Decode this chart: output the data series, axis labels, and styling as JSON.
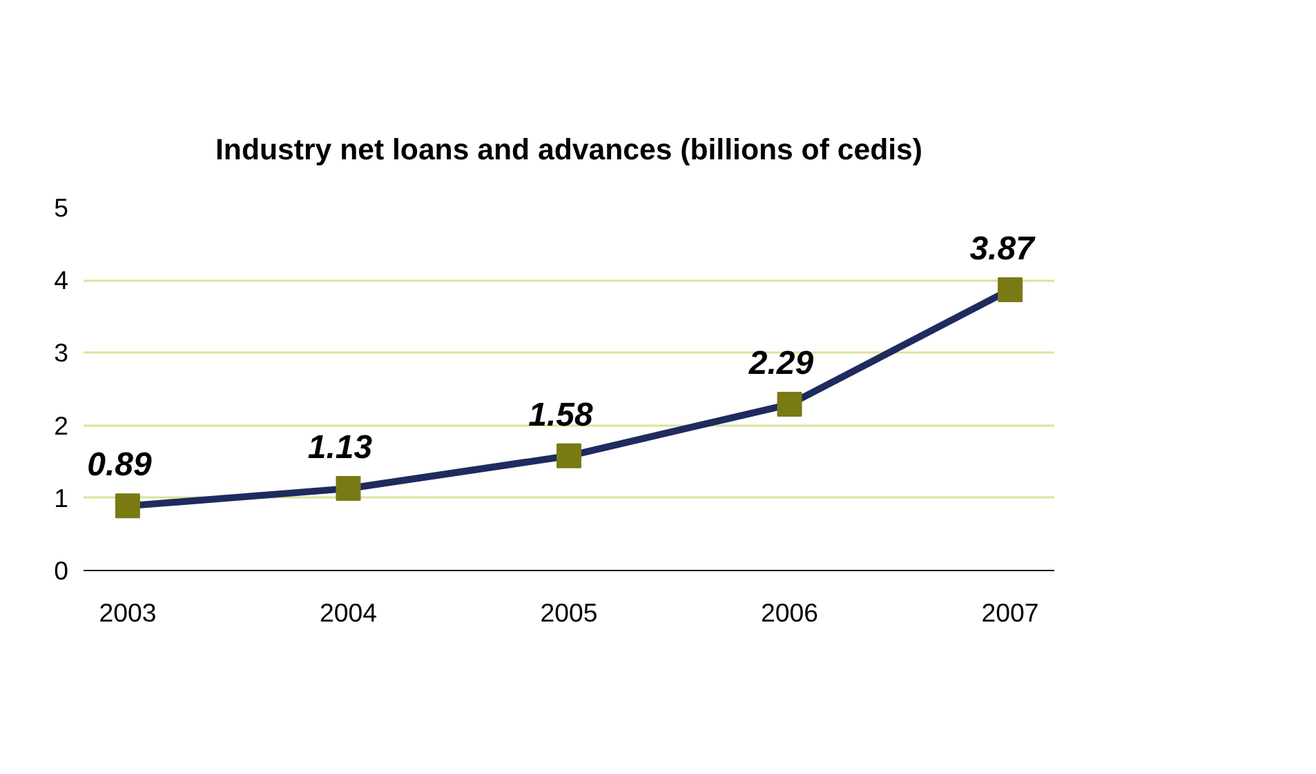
{
  "chart_data": {
    "type": "line",
    "title": "Industry net loans and advances (billions of cedis)",
    "categories": [
      "2003",
      "2004",
      "2005",
      "2006",
      "2007"
    ],
    "series": [
      {
        "color": "#1f2a5e",
        "colors": [
          "#7a7a14",
          "#7a7a14",
          "#7a7a14",
          "#7a7a14",
          "#7a7a14"
        ],
        "values": [
          0.89,
          1.13,
          1.58,
          2.29,
          3.87
        ]
      }
    ],
    "ylim": [
      0,
      5
    ],
    "yticks": [
      0,
      1,
      2,
      3,
      4,
      5
    ],
    "grid": "y",
    "marker": "square",
    "data_labels": true,
    "line_style": "solid"
  }
}
